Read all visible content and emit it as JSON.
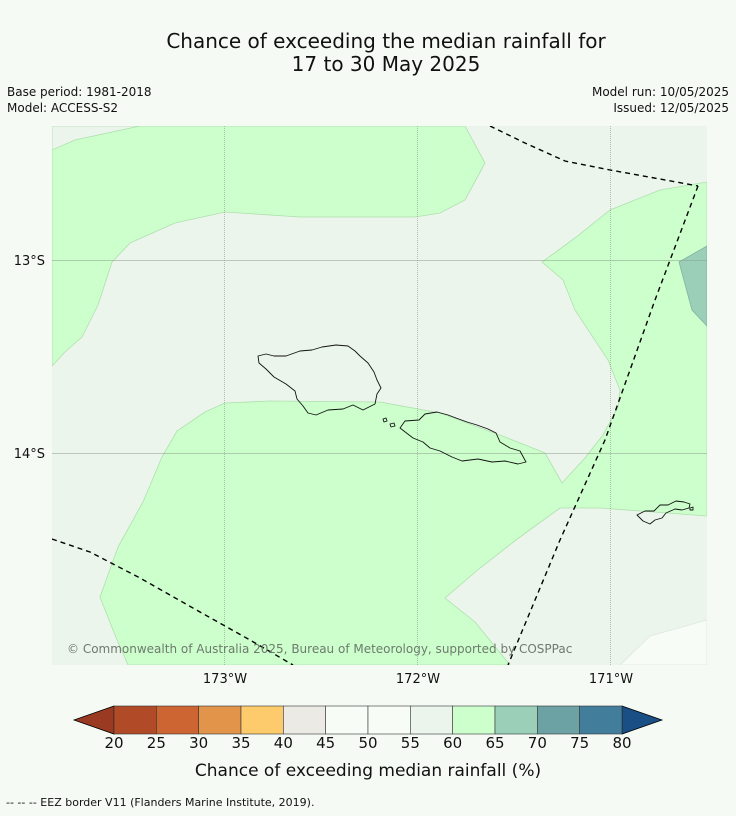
{
  "title_line1": "Chance of exceeding the median rainfall for",
  "title_line2": "17 to 30 May 2025",
  "meta_left": {
    "base_period": "Base period: 1981-2018",
    "model": "Model: ACCESS-S2"
  },
  "meta_right": {
    "model_run": "Model run: 10/05/2025",
    "issued": "Issued: 12/05/2025"
  },
  "map": {
    "lat_labels": [
      "13°S",
      "14°S"
    ],
    "lon_labels": [
      "173°W",
      "172°W",
      "171°W"
    ],
    "copyright": "© Commonwealth of Australia 2025, Bureau of Meteorology, supported by COSPPac"
  },
  "colorbar": {
    "ticks": [
      "20",
      "25",
      "30",
      "35",
      "40",
      "45",
      "50",
      "55",
      "60",
      "65",
      "70",
      "75",
      "80"
    ],
    "colors": [
      "#b04a27",
      "#cd6533",
      "#e1944a",
      "#fdcb6b",
      "#eceae4",
      "#f7fcf6",
      "#f7fcf6",
      "#ebf5eb",
      "#ccffcc",
      "#9ccfb8",
      "#6da2a4",
      "#427d9c"
    ],
    "under_color": "#9b3a22",
    "over_color": "#1a4f86",
    "label": "Chance of exceeding median rainfall (%)"
  },
  "footer": "--  --  -- EEZ border V11 (Flanders Marine Institute, 2019)."
}
